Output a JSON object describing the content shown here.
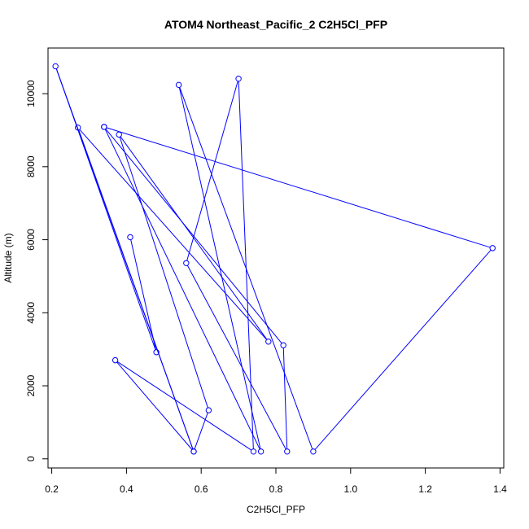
{
  "chart_data": {
    "type": "line",
    "title": "ATOM4 Northeast_Pacific_2 C2H5Cl_PFP",
    "xlabel": "C2H5Cl_PFP",
    "ylabel": "Altitude (m)",
    "xlim": [
      0.19,
      1.41
    ],
    "ylim": [
      -250,
      11250
    ],
    "x_ticks": [
      0.2,
      0.4,
      0.6,
      0.8,
      1.0,
      1.2,
      1.4
    ],
    "x_tick_labels": [
      "0.2",
      "0.4",
      "0.6",
      "0.8",
      "1.0",
      "1.2",
      "1.4"
    ],
    "y_ticks": [
      0,
      2000,
      4000,
      6000,
      8000,
      10000
    ],
    "y_tick_labels": [
      "0",
      "2000",
      "4000",
      "6000",
      "8000",
      "10000"
    ],
    "grid": false,
    "legend": "none",
    "series": [
      {
        "color": "#0000ff",
        "marker": "open-circle",
        "points": [
          {
            "x": 0.41,
            "y": 6070
          },
          {
            "x": 0.48,
            "y": 2920
          },
          {
            "x": 0.21,
            "y": 10750
          },
          {
            "x": 0.58,
            "y": 200
          },
          {
            "x": 0.27,
            "y": 9070
          },
          {
            "x": 0.78,
            "y": 3210
          },
          {
            "x": 0.38,
            "y": 8880
          },
          {
            "x": 0.62,
            "y": 1330
          },
          {
            "x": 0.58,
            "y": 200
          },
          {
            "x": 0.37,
            "y": 2700
          },
          {
            "x": 0.74,
            "y": 200
          },
          {
            "x": 0.7,
            "y": 10410
          },
          {
            "x": 0.56,
            "y": 5360
          },
          {
            "x": 0.83,
            "y": 200
          },
          {
            "x": 0.82,
            "y": 3110
          },
          {
            "x": 0.34,
            "y": 9090
          },
          {
            "x": 0.76,
            "y": 200
          },
          {
            "x": 0.54,
            "y": 10240
          },
          {
            "x": 0.9,
            "y": 200
          },
          {
            "x": 1.38,
            "y": 5770
          },
          {
            "x": 0.34,
            "y": 9090
          }
        ]
      }
    ]
  }
}
